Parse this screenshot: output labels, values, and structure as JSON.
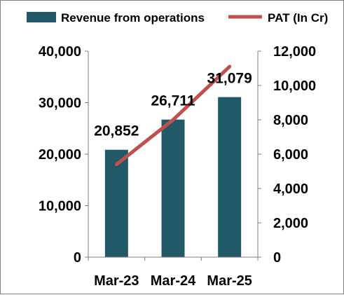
{
  "chart_data": {
    "type": "bar",
    "title": "",
    "categories": [
      "Mar-23",
      "Mar-24",
      "Mar-25"
    ],
    "series": [
      {
        "name": "Revenue from operations",
        "type": "bar",
        "axis": "left",
        "color": "#215968",
        "values": [
          20852,
          26711,
          31079
        ],
        "value_labels": [
          "20,852",
          "26,711",
          "31,079"
        ]
      },
      {
        "name": "PAT (In Cr)",
        "type": "line",
        "axis": "right",
        "color": "#c0504d",
        "values": [
          5400,
          8000,
          11100
        ]
      }
    ],
    "y_left": {
      "ylim": [
        0,
        40000
      ],
      "ticks": [
        0,
        10000,
        20000,
        30000,
        40000
      ],
      "tick_labels": [
        "0",
        "10,000",
        "20,000",
        "30,000",
        "40,000"
      ]
    },
    "y_right": {
      "ylim": [
        0,
        12000
      ],
      "ticks": [
        0,
        2000,
        4000,
        6000,
        8000,
        10000,
        12000
      ],
      "tick_labels": [
        "0",
        "2,000",
        "4,000",
        "6,000",
        "8,000",
        "10,000",
        "12,000"
      ]
    },
    "grid": false,
    "legend_position": "top"
  }
}
